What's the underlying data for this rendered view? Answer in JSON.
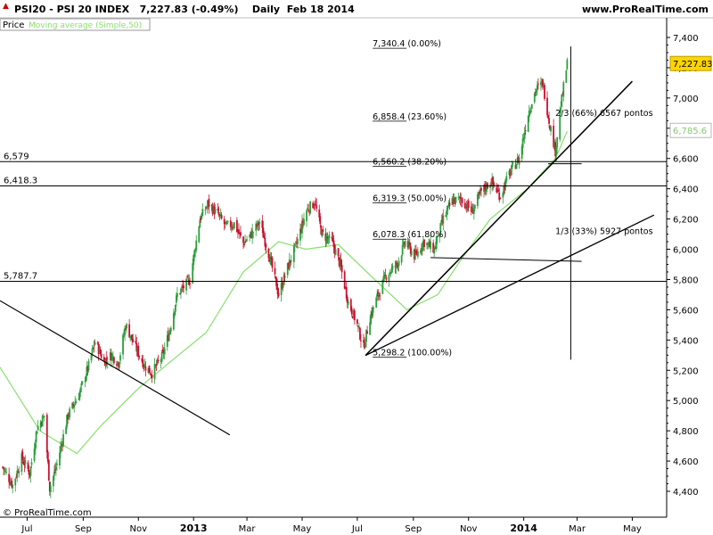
{
  "header": {
    "title": "PSI20 - PSI 20 INDEX",
    "last": "7,227.83 (-0.49%)",
    "period": "Daily",
    "date": "Feb 18 2014",
    "site": "www.ProRealTime.com"
  },
  "legend": {
    "price_label": "Price",
    "ma_label": "Moving average (Simple,50)"
  },
  "footer": {
    "copyright": "© ProRealTime.com"
  },
  "colors": {
    "up": "#2e9e3e",
    "down": "#c8102e",
    "ma": "#86e06a",
    "line": "#000000"
  },
  "chart_data": {
    "type": "candlestick",
    "title": "PSI20 - PSI 20 INDEX",
    "xlabel": "",
    "ylabel": "",
    "ylim": [
      4300,
      7500
    ],
    "y_ticks": [
      4400,
      4600,
      4800,
      5000,
      5200,
      5400,
      5600,
      5800,
      6000,
      6200,
      6400,
      6600,
      6800,
      7000,
      7200,
      7400
    ],
    "y_tick_labels": [
      "4,400",
      "4,600",
      "4,800",
      "5,000",
      "5,200",
      "5,400",
      "5,600",
      "5,800",
      "6,000",
      "6,200",
      "6,400",
      "6,600",
      "6,800",
      "7,000",
      "7,200",
      "7,400"
    ],
    "x_ticks": [
      {
        "label": "Jul",
        "date": "2012-07-01",
        "bold": false
      },
      {
        "label": "Sep",
        "date": "2012-09-01",
        "bold": false
      },
      {
        "label": "Nov",
        "date": "2012-11-01",
        "bold": false
      },
      {
        "label": "2013",
        "date": "2013-01-01",
        "bold": true
      },
      {
        "label": "Mar",
        "date": "2013-03-01",
        "bold": false
      },
      {
        "label": "May",
        "date": "2013-05-01",
        "bold": false
      },
      {
        "label": "Jul",
        "date": "2013-07-01",
        "bold": false
      },
      {
        "label": "Sep",
        "date": "2013-09-01",
        "bold": false
      },
      {
        "label": "Nov",
        "date": "2013-11-01",
        "bold": false
      },
      {
        "label": "2014",
        "date": "2014-01-01",
        "bold": true
      },
      {
        "label": "Mar",
        "date": "2014-03-01",
        "bold": false
      },
      {
        "label": "May",
        "date": "2014-05-01",
        "bold": false
      }
    ],
    "xlim": [
      "2012-06-01",
      "2014-06-08"
    ],
    "price_path": [
      [
        "2012-06-04",
        4560
      ],
      [
        "2012-06-15",
        4440
      ],
      [
        "2012-06-25",
        4620
      ],
      [
        "2012-07-04",
        4520
      ],
      [
        "2012-07-12",
        4820
      ],
      [
        "2012-07-20",
        4900
      ],
      [
        "2012-07-26",
        4420
      ],
      [
        "2012-08-03",
        4580
      ],
      [
        "2012-08-15",
        4900
      ],
      [
        "2012-08-28",
        5050
      ],
      [
        "2012-09-07",
        5230
      ],
      [
        "2012-09-14",
        5390
      ],
      [
        "2012-09-24",
        5260
      ],
      [
        "2012-10-02",
        5300
      ],
      [
        "2012-10-10",
        5250
      ],
      [
        "2012-10-18",
        5500
      ],
      [
        "2012-10-29",
        5350
      ],
      [
        "2012-11-08",
        5230
      ],
      [
        "2012-11-16",
        5180
      ],
      [
        "2012-11-28",
        5300
      ],
      [
        "2012-12-05",
        5450
      ],
      [
        "2012-12-14",
        5700
      ],
      [
        "2012-12-28",
        5800
      ],
      [
        "2013-01-08",
        6200
      ],
      [
        "2013-01-17",
        6300
      ],
      [
        "2013-01-28",
        6230
      ],
      [
        "2013-02-06",
        6150
      ],
      [
        "2013-02-15",
        6170
      ],
      [
        "2013-02-25",
        6040
      ],
      [
        "2013-03-06",
        6100
      ],
      [
        "2013-03-15",
        6180
      ],
      [
        "2013-03-26",
        5950
      ],
      [
        "2013-04-05",
        5700
      ],
      [
        "2013-04-15",
        5880
      ],
      [
        "2013-04-24",
        6020
      ],
      [
        "2013-05-06",
        6260
      ],
      [
        "2013-05-15",
        6310
      ],
      [
        "2013-05-23",
        6100
      ],
      [
        "2013-06-03",
        6050
      ],
      [
        "2013-06-12",
        5900
      ],
      [
        "2013-06-21",
        5650
      ],
      [
        "2013-06-30",
        5520
      ],
      [
        "2013-07-08",
        5350
      ],
      [
        "2013-07-15",
        5550
      ],
      [
        "2013-07-24",
        5700
      ],
      [
        "2013-08-02",
        5830
      ],
      [
        "2013-08-14",
        5900
      ],
      [
        "2013-08-23",
        6050
      ],
      [
        "2013-09-03",
        5950
      ],
      [
        "2013-09-12",
        6050
      ],
      [
        "2013-09-24",
        6000
      ],
      [
        "2013-10-04",
        6200
      ],
      [
        "2013-10-14",
        6320
      ],
      [
        "2013-10-24",
        6330
      ],
      [
        "2013-11-05",
        6250
      ],
      [
        "2013-11-15",
        6380
      ],
      [
        "2013-11-26",
        6450
      ],
      [
        "2013-12-06",
        6350
      ],
      [
        "2013-12-16",
        6500
      ],
      [
        "2013-12-27",
        6600
      ],
      [
        "2014-01-06",
        6900
      ],
      [
        "2014-01-14",
        7050
      ],
      [
        "2014-01-22",
        7100
      ],
      [
        "2014-01-29",
        6850
      ],
      [
        "2014-02-05",
        6650
      ],
      [
        "2014-02-11",
        6950
      ],
      [
        "2014-02-18",
        7227.83
      ]
    ],
    "ma_path": [
      [
        "2012-06-01",
        5220
      ],
      [
        "2012-07-15",
        4800
      ],
      [
        "2012-08-25",
        4650
      ],
      [
        "2012-09-20",
        4830
      ],
      [
        "2012-11-01",
        5080
      ],
      [
        "2012-12-05",
        5250
      ],
      [
        "2013-01-15",
        5450
      ],
      [
        "2013-02-25",
        5850
      ],
      [
        "2013-04-05",
        6050
      ],
      [
        "2013-05-05",
        6000
      ],
      [
        "2013-06-10",
        6030
      ],
      [
        "2013-07-15",
        5830
      ],
      [
        "2013-08-25",
        5600
      ],
      [
        "2013-09-28",
        5700
      ],
      [
        "2013-10-20",
        5900
      ],
      [
        "2013-11-25",
        6200
      ],
      [
        "2014-01-05",
        6400
      ],
      [
        "2014-02-05",
        6600
      ],
      [
        "2014-02-18",
        6780
      ]
    ],
    "lines": {
      "horizontal": [
        {
          "value": 6579,
          "label": "6,579"
        },
        {
          "value": 6418.3,
          "label": "6,418.3"
        },
        {
          "value": 5787.7,
          "label": "5,787.7"
        }
      ],
      "fibonacci": [
        {
          "value": 7340.4,
          "label": "7,340.4 (0.00%)"
        },
        {
          "value": 6858.4,
          "label": "6,858.4 (23.60%)"
        },
        {
          "value": 6560.2,
          "label": "6,560.2 (38.20%)"
        },
        {
          "value": 6319.3,
          "label": "6,319.3 (50.00%)"
        },
        {
          "value": 6078.3,
          "label": "6,078.3 (61.80%)"
        },
        {
          "value": 5298.2,
          "label": "5,298.2 (100.00%)"
        }
      ],
      "fan_labels": [
        {
          "text": "2/3 (66%) 6567 pontos",
          "date": "2014-02-05",
          "value": 6882
        },
        {
          "text": "1/3 (33%) 5927 pontos",
          "date": "2014-02-05",
          "value": 6101
        }
      ]
    },
    "last_price": {
      "value": 7227.83,
      "label": "7,227.83"
    },
    "ma_last": {
      "value": 6785.6,
      "label": "6,785.6"
    }
  }
}
